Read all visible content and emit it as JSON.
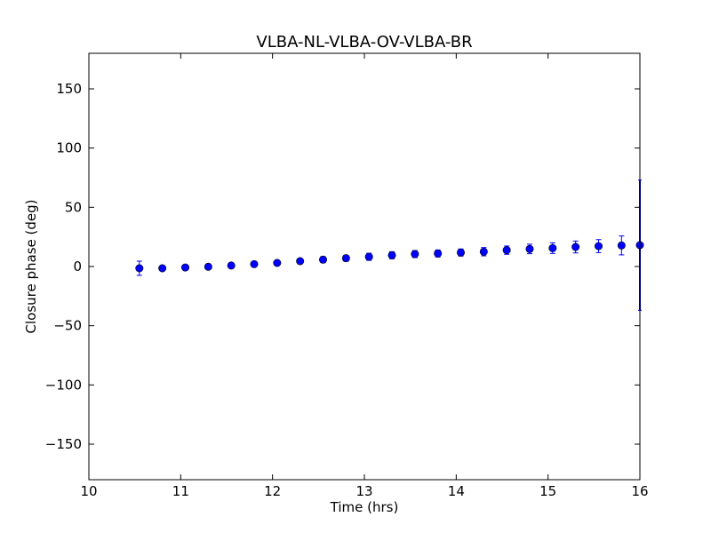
{
  "chart_data": {
    "type": "scatter",
    "title": "VLBA-NL-VLBA-OV-VLBA-BR",
    "xlabel": "Time (hrs)",
    "ylabel": "Closure phase (deg)",
    "xlim": [
      10,
      16
    ],
    "ylim": [
      -180,
      180
    ],
    "xticks": [
      10,
      11,
      12,
      13,
      14,
      15,
      16
    ],
    "xtick_labels": [
      "10",
      "11",
      "12",
      "13",
      "14",
      "15",
      "16"
    ],
    "yticks": [
      -150,
      -100,
      -50,
      0,
      50,
      100,
      150
    ],
    "ytick_labels": [
      "−150",
      "−100",
      "−50",
      "0",
      "50",
      "100",
      "150"
    ],
    "grid": false,
    "series": [
      {
        "color": "#0000ff",
        "marker": "circle",
        "x": [
          10.55,
          10.8,
          11.05,
          11.3,
          11.55,
          11.8,
          12.05,
          12.3,
          12.55,
          12.8,
          13.05,
          13.3,
          13.55,
          13.8,
          14.05,
          14.3,
          14.55,
          14.8,
          15.05,
          15.3,
          15.55,
          15.8,
          16.0
        ],
        "y": [
          -1.5,
          -1.5,
          -0.8,
          -0.2,
          0.8,
          2.0,
          3.0,
          4.5,
          5.8,
          7.0,
          8.2,
          9.5,
          10.5,
          11.0,
          11.8,
          12.5,
          13.8,
          14.8,
          15.5,
          16.5,
          17.2,
          17.8,
          18.0
        ],
        "yerr": [
          6.0,
          1.5,
          1.5,
          1.5,
          1.5,
          1.5,
          2.0,
          2.0,
          2.5,
          2.5,
          3.0,
          3.0,
          3.0,
          3.0,
          3.0,
          3.5,
          3.5,
          4.0,
          4.5,
          5.0,
          5.5,
          8.0,
          55.0
        ]
      }
    ]
  }
}
